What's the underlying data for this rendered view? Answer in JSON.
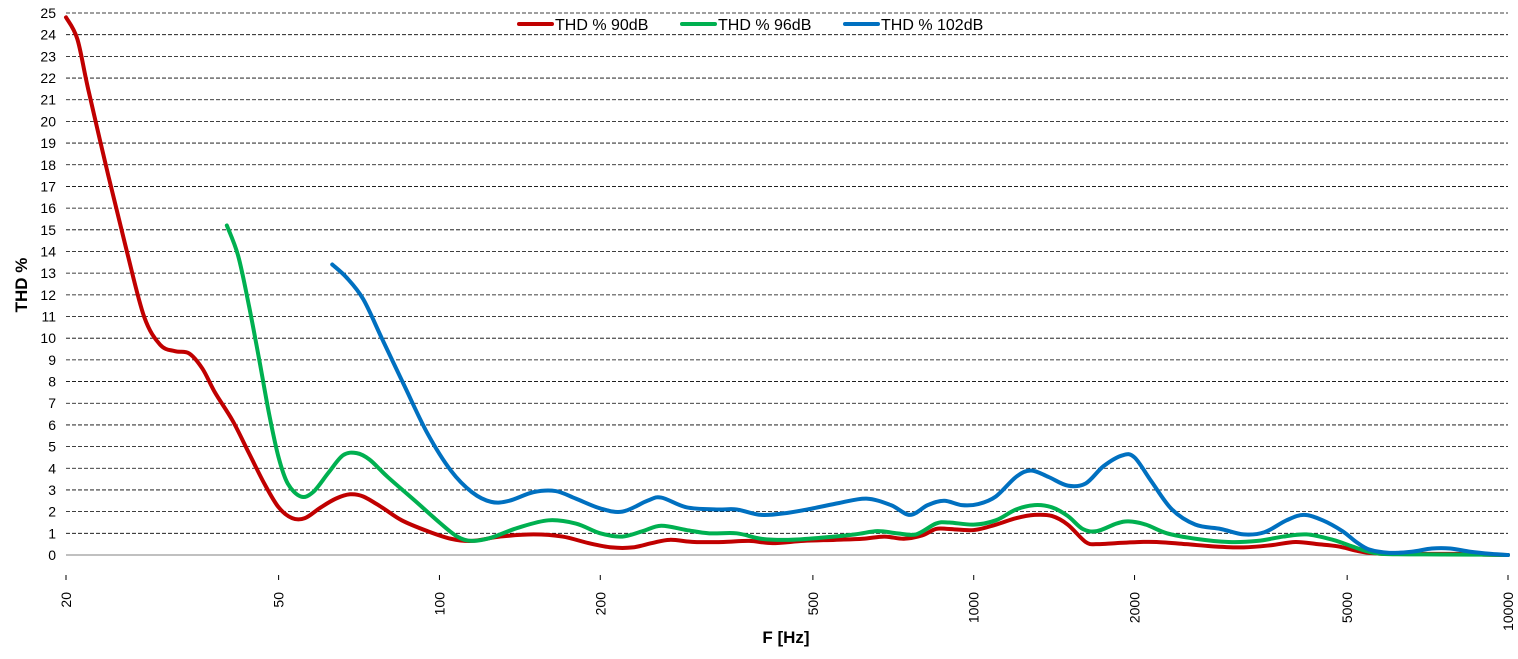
{
  "chart_data": {
    "type": "line",
    "title": "",
    "xlabel": "F [Hz]",
    "ylabel": "THD %",
    "x_scale": "log",
    "xlim": [
      20,
      10000
    ],
    "ylim": [
      0,
      25
    ],
    "x_ticks": [
      20,
      50,
      100,
      200,
      500,
      1000,
      2000,
      5000,
      10000
    ],
    "x_tick_labels": [
      "20",
      "50",
      "100",
      "200",
      "500",
      "1000",
      "2000",
      "5000",
      "10000"
    ],
    "y_ticks": [
      0,
      1,
      2,
      3,
      4,
      5,
      6,
      7,
      8,
      9,
      10,
      11,
      12,
      13,
      14,
      15,
      16,
      17,
      18,
      19,
      20,
      21,
      22,
      23,
      24,
      25
    ],
    "y_tick_labels": [
      "0",
      "1",
      "2",
      "3",
      "4",
      "5",
      "6",
      "7",
      "8",
      "9",
      "10",
      "11",
      "12",
      "13",
      "14",
      "15",
      "16",
      "17",
      "18",
      "19",
      "20",
      "21",
      "22",
      "23",
      "24",
      "25"
    ],
    "grid": "horizontal dashed",
    "legend_position": "top-center",
    "series": [
      {
        "name": "THD % 90dB",
        "color": "#C00000",
        "points": [
          [
            20,
            24.8
          ],
          [
            21,
            23.8
          ],
          [
            22,
            21.5
          ],
          [
            24,
            17.5
          ],
          [
            26,
            14.0
          ],
          [
            28,
            11.0
          ],
          [
            30,
            9.7
          ],
          [
            32,
            9.4
          ],
          [
            34,
            9.3
          ],
          [
            36,
            8.6
          ],
          [
            38,
            7.5
          ],
          [
            41,
            6.2
          ],
          [
            44,
            4.7
          ],
          [
            47,
            3.3
          ],
          [
            50,
            2.2
          ],
          [
            53,
            1.7
          ],
          [
            56,
            1.7
          ],
          [
            60,
            2.2
          ],
          [
            64,
            2.6
          ],
          [
            68,
            2.8
          ],
          [
            72,
            2.7
          ],
          [
            78,
            2.2
          ],
          [
            85,
            1.6
          ],
          [
            95,
            1.1
          ],
          [
            105,
            0.75
          ],
          [
            115,
            0.65
          ],
          [
            130,
            0.85
          ],
          [
            150,
            0.95
          ],
          [
            170,
            0.85
          ],
          [
            190,
            0.55
          ],
          [
            210,
            0.35
          ],
          [
            230,
            0.35
          ],
          [
            250,
            0.55
          ],
          [
            270,
            0.7
          ],
          [
            300,
            0.6
          ],
          [
            340,
            0.6
          ],
          [
            380,
            0.65
          ],
          [
            420,
            0.55
          ],
          [
            480,
            0.65
          ],
          [
            550,
            0.7
          ],
          [
            620,
            0.75
          ],
          [
            680,
            0.85
          ],
          [
            740,
            0.75
          ],
          [
            800,
            0.9
          ],
          [
            850,
            1.2
          ],
          [
            900,
            1.2
          ],
          [
            1000,
            1.15
          ],
          [
            1100,
            1.4
          ],
          [
            1200,
            1.7
          ],
          [
            1300,
            1.85
          ],
          [
            1400,
            1.8
          ],
          [
            1500,
            1.4
          ],
          [
            1620,
            0.6
          ],
          [
            1700,
            0.5
          ],
          [
            1850,
            0.55
          ],
          [
            2050,
            0.6
          ],
          [
            2200,
            0.6
          ],
          [
            2500,
            0.5
          ],
          [
            2800,
            0.4
          ],
          [
            3200,
            0.35
          ],
          [
            3600,
            0.45
          ],
          [
            4000,
            0.6
          ],
          [
            4400,
            0.5
          ],
          [
            4800,
            0.4
          ],
          [
            5200,
            0.2
          ],
          [
            5500,
            0.1
          ],
          [
            6000,
            0.05
          ],
          [
            7000,
            0.05
          ],
          [
            8000,
            0.05
          ],
          [
            9000,
            0.02
          ],
          [
            10000,
            0.0
          ]
        ]
      },
      {
        "name": "THD % 96dB",
        "color": "#00B050",
        "points": [
          [
            40,
            15.2
          ],
          [
            42,
            13.8
          ],
          [
            44,
            11.5
          ],
          [
            46,
            9.0
          ],
          [
            48,
            6.5
          ],
          [
            50,
            4.5
          ],
          [
            52,
            3.3
          ],
          [
            55,
            2.7
          ],
          [
            58,
            2.9
          ],
          [
            62,
            3.8
          ],
          [
            66,
            4.6
          ],
          [
            70,
            4.7
          ],
          [
            74,
            4.4
          ],
          [
            80,
            3.6
          ],
          [
            90,
            2.5
          ],
          [
            100,
            1.5
          ],
          [
            108,
            0.85
          ],
          [
            115,
            0.65
          ],
          [
            125,
            0.8
          ],
          [
            140,
            1.25
          ],
          [
            160,
            1.6
          ],
          [
            180,
            1.45
          ],
          [
            200,
            1.0
          ],
          [
            220,
            0.85
          ],
          [
            240,
            1.1
          ],
          [
            260,
            1.35
          ],
          [
            290,
            1.15
          ],
          [
            320,
            1.0
          ],
          [
            360,
            1.0
          ],
          [
            400,
            0.75
          ],
          [
            450,
            0.7
          ],
          [
            520,
            0.8
          ],
          [
            600,
            0.95
          ],
          [
            660,
            1.1
          ],
          [
            720,
            1.0
          ],
          [
            780,
            0.95
          ],
          [
            850,
            1.45
          ],
          [
            900,
            1.5
          ],
          [
            1000,
            1.4
          ],
          [
            1100,
            1.6
          ],
          [
            1200,
            2.1
          ],
          [
            1300,
            2.3
          ],
          [
            1400,
            2.2
          ],
          [
            1500,
            1.8
          ],
          [
            1600,
            1.2
          ],
          [
            1700,
            1.1
          ],
          [
            1850,
            1.45
          ],
          [
            1950,
            1.55
          ],
          [
            2100,
            1.4
          ],
          [
            2300,
            1.0
          ],
          [
            2600,
            0.75
          ],
          [
            3000,
            0.6
          ],
          [
            3400,
            0.65
          ],
          [
            3800,
            0.85
          ],
          [
            4200,
            0.95
          ],
          [
            4700,
            0.7
          ],
          [
            5100,
            0.4
          ],
          [
            5400,
            0.2
          ],
          [
            5800,
            0.05
          ],
          [
            7000,
            0.03
          ],
          [
            8500,
            0.02
          ],
          [
            10000,
            0.0
          ]
        ]
      },
      {
        "name": "THD % 102dB",
        "color": "#0070C0",
        "points": [
          [
            63,
            13.4
          ],
          [
            67,
            12.8
          ],
          [
            72,
            11.8
          ],
          [
            78,
            10.0
          ],
          [
            86,
            7.8
          ],
          [
            95,
            5.6
          ],
          [
            105,
            3.9
          ],
          [
            115,
            2.9
          ],
          [
            125,
            2.45
          ],
          [
            135,
            2.5
          ],
          [
            150,
            2.9
          ],
          [
            165,
            2.95
          ],
          [
            180,
            2.6
          ],
          [
            200,
            2.15
          ],
          [
            220,
            2.0
          ],
          [
            245,
            2.5
          ],
          [
            260,
            2.65
          ],
          [
            290,
            2.2
          ],
          [
            330,
            2.1
          ],
          [
            360,
            2.1
          ],
          [
            400,
            1.85
          ],
          [
            450,
            1.95
          ],
          [
            500,
            2.15
          ],
          [
            560,
            2.4
          ],
          [
            630,
            2.6
          ],
          [
            700,
            2.3
          ],
          [
            760,
            1.85
          ],
          [
            820,
            2.3
          ],
          [
            880,
            2.5
          ],
          [
            950,
            2.3
          ],
          [
            1020,
            2.35
          ],
          [
            1100,
            2.7
          ],
          [
            1200,
            3.6
          ],
          [
            1280,
            3.9
          ],
          [
            1380,
            3.6
          ],
          [
            1500,
            3.2
          ],
          [
            1620,
            3.3
          ],
          [
            1750,
            4.1
          ],
          [
            1900,
            4.6
          ],
          [
            2000,
            4.5
          ],
          [
            2150,
            3.4
          ],
          [
            2350,
            2.1
          ],
          [
            2600,
            1.4
          ],
          [
            2900,
            1.2
          ],
          [
            3200,
            0.95
          ],
          [
            3500,
            1.05
          ],
          [
            3850,
            1.6
          ],
          [
            4150,
            1.85
          ],
          [
            4500,
            1.6
          ],
          [
            4900,
            1.1
          ],
          [
            5200,
            0.6
          ],
          [
            5500,
            0.25
          ],
          [
            6000,
            0.1
          ],
          [
            6600,
            0.15
          ],
          [
            7200,
            0.3
          ],
          [
            7800,
            0.3
          ],
          [
            8500,
            0.15
          ],
          [
            9300,
            0.05
          ],
          [
            10000,
            0.0
          ]
        ]
      }
    ]
  }
}
